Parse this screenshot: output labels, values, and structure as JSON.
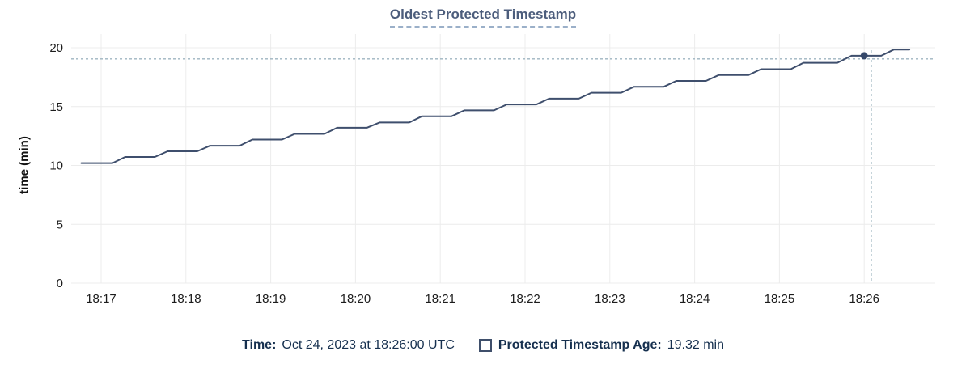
{
  "title": "Oldest Protected Timestamp",
  "colors": {
    "series_line": "#3f4f6d",
    "hover_dot": "#35486a",
    "crosshair": "#9eb4c0",
    "gridline": "#ececec",
    "title_text": "#4c5d7c",
    "legend_text": "#16304f",
    "axis_text": "#1c1c1c"
  },
  "legend": {
    "time_label": "Time:",
    "time_value": "Oct 24, 2023 at 18:26:00 UTC",
    "series_label": "Protected Timestamp Age:",
    "series_value": "19.32 min"
  },
  "chart_data": {
    "type": "line",
    "title": "Oldest Protected Timestamp",
    "xlabel": "",
    "ylabel": "time (min)",
    "ylim": [
      0,
      20
    ],
    "grid": true,
    "legend_position": "bottom",
    "t_unit": "seconds after 18:16:00 UTC",
    "x_ticks": [
      {
        "label": "18:17",
        "t": 60
      },
      {
        "label": "18:18",
        "t": 120
      },
      {
        "label": "18:19",
        "t": 180
      },
      {
        "label": "18:20",
        "t": 240
      },
      {
        "label": "18:21",
        "t": 300
      },
      {
        "label": "18:22",
        "t": 360
      },
      {
        "label": "18:23",
        "t": 420
      },
      {
        "label": "18:24",
        "t": 480
      },
      {
        "label": "18:25",
        "t": 540
      },
      {
        "label": "18:26",
        "t": 600
      }
    ],
    "y_ticks": [
      0,
      5,
      10,
      15,
      20
    ],
    "series": [
      {
        "name": "Protected Timestamp Age",
        "unit": "min",
        "points": [
          [
            46,
            10.2
          ],
          [
            68,
            10.2
          ],
          [
            77,
            10.72
          ],
          [
            98,
            10.72
          ],
          [
            107,
            11.2
          ],
          [
            128,
            11.2
          ],
          [
            137,
            11.68
          ],
          [
            158,
            11.68
          ],
          [
            167,
            12.2
          ],
          [
            188,
            12.2
          ],
          [
            197,
            12.68
          ],
          [
            218,
            12.68
          ],
          [
            227,
            13.2
          ],
          [
            248,
            13.2
          ],
          [
            257,
            13.65
          ],
          [
            278,
            13.65
          ],
          [
            287,
            14.18
          ],
          [
            308,
            14.18
          ],
          [
            317,
            14.68
          ],
          [
            338,
            14.68
          ],
          [
            347,
            15.18
          ],
          [
            368,
            15.18
          ],
          [
            377,
            15.68
          ],
          [
            398,
            15.68
          ],
          [
            407,
            16.18
          ],
          [
            428,
            16.18
          ],
          [
            437,
            16.68
          ],
          [
            458,
            16.68
          ],
          [
            467,
            17.18
          ],
          [
            488,
            17.18
          ],
          [
            497,
            17.68
          ],
          [
            518,
            17.68
          ],
          [
            527,
            18.18
          ],
          [
            548,
            18.18
          ],
          [
            557,
            18.72
          ],
          [
            581,
            18.72
          ],
          [
            591,
            19.32
          ],
          [
            612,
            19.32
          ],
          [
            621,
            19.85
          ],
          [
            632,
            19.85
          ]
        ]
      }
    ],
    "hover": {
      "crosshair_t": 605,
      "crosshair_value": 19.05,
      "point": {
        "t": 600,
        "value": 19.32
      },
      "time_text": "Oct 24, 2023 at 18:26:00 UTC",
      "value_text": "19.32 min"
    }
  }
}
